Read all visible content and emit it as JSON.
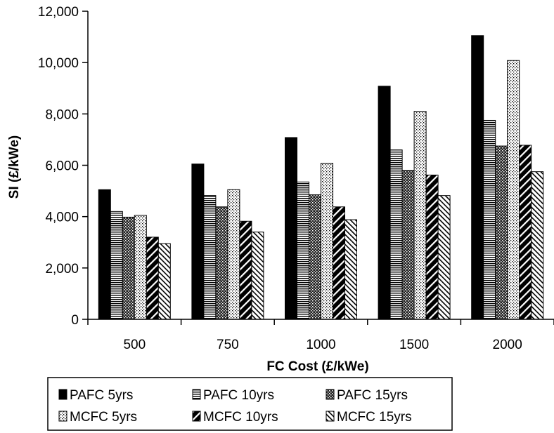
{
  "chart_data": {
    "type": "bar",
    "title": "",
    "xlabel": "FC Cost  (£/kWe)",
    "ylabel": "SI   (£/kWe)",
    "ylim": [
      0,
      12000
    ],
    "yticks": [
      "0",
      "2,000",
      "4,000",
      "6,000",
      "8,000",
      "10,000",
      "12,000"
    ],
    "grid": false,
    "legend_position": "bottom",
    "categories": [
      "500",
      "750",
      "1000",
      "1500",
      "2000"
    ],
    "series": [
      {
        "name": "PAFC 5yrs",
        "pattern": "solid-black",
        "values": [
          5050,
          6050,
          7080,
          9080,
          11050
        ]
      },
      {
        "name": "PAFC 10yrs",
        "pattern": "horizontal-lines",
        "values": [
          4200,
          4820,
          5350,
          6600,
          7750
        ]
      },
      {
        "name": "PAFC 15yrs",
        "pattern": "dark-crosshatch",
        "values": [
          3980,
          4380,
          4850,
          5800,
          6750
        ]
      },
      {
        "name": "MCFC 5yrs",
        "pattern": "light-dots",
        "values": [
          4050,
          5050,
          6080,
          8100,
          10080
        ]
      },
      {
        "name": "MCFC 10yrs",
        "pattern": "wide-diagonal",
        "values": [
          3200,
          3820,
          4380,
          5620,
          6780
        ]
      },
      {
        "name": "MCFC 15yrs",
        "pattern": "narrow-diagonal",
        "values": [
          2950,
          3400,
          3880,
          4820,
          5750
        ]
      }
    ]
  }
}
